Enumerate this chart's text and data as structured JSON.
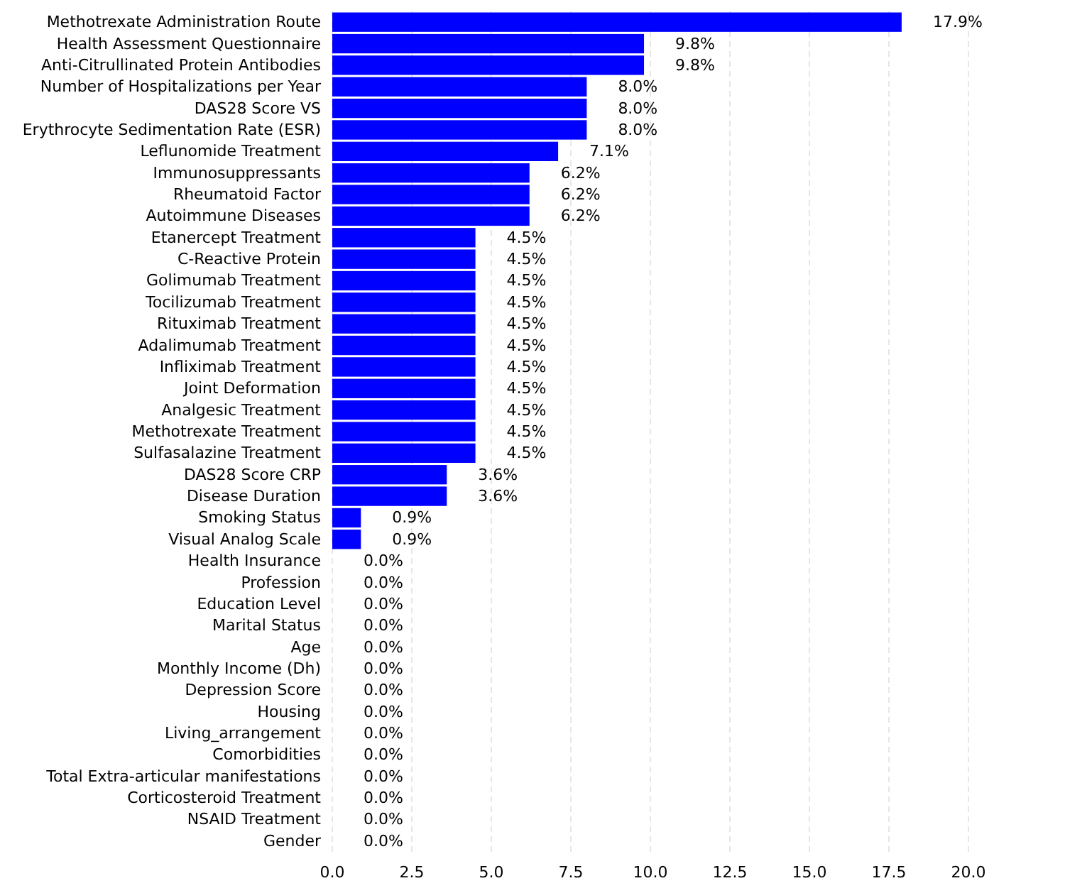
{
  "chart_data": {
    "type": "bar",
    "orientation": "horizontal",
    "color": "#0000ff",
    "grid": "x",
    "categories": [
      "Methotrexate Administration Route",
      "Health Assessment Questionnaire",
      "Anti-Citrullinated Protein Antibodies",
      "Number of Hospitalizations per Year",
      "DAS28 Score VS",
      "Erythrocyte Sedimentation Rate (ESR)",
      "Leflunomide Treatment",
      "Immunosuppressants",
      "Rheumatoid Factor",
      "Autoimmune Diseases",
      "Etanercept Treatment",
      "C-Reactive Protein",
      "Golimumab Treatment",
      "Tocilizumab Treatment",
      "Rituximab Treatment",
      "Adalimumab Treatment",
      "Infliximab Treatment",
      "Joint Deformation",
      "Analgesic Treatment",
      "Methotrexate Treatment",
      "Sulfasalazine Treatment",
      "DAS28 Score CRP",
      "Disease Duration",
      "Smoking Status",
      "Visual Analog Scale",
      "Health Insurance",
      "Profession",
      "Education Level",
      "Marital Status",
      "Age",
      "Monthly Income (Dh)",
      "Depression Score",
      "Housing",
      "Living_arrangement",
      "Comorbidities",
      "Total Extra-articular manifestations",
      "Corticosteroid Treatment",
      "NSAID Treatment",
      "Gender"
    ],
    "values": [
      17.9,
      9.8,
      9.8,
      8.0,
      8.0,
      8.0,
      7.1,
      6.2,
      6.2,
      6.2,
      4.5,
      4.5,
      4.5,
      4.5,
      4.5,
      4.5,
      4.5,
      4.5,
      4.5,
      4.5,
      4.5,
      3.6,
      3.6,
      0.9,
      0.9,
      0,
      0,
      0,
      0,
      0,
      0,
      0,
      0,
      0,
      0,
      0,
      0,
      0,
      0
    ],
    "value_labels": [
      "17.9%",
      "9.8%",
      "9.8%",
      "8.0%",
      "8.0%",
      "8.0%",
      "7.1%",
      "6.2%",
      "6.2%",
      "6.2%",
      "4.5%",
      "4.5%",
      "4.5%",
      "4.5%",
      "4.5%",
      "4.5%",
      "4.5%",
      "4.5%",
      "4.5%",
      "4.5%",
      "4.5%",
      "3.6%",
      "3.6%",
      "0.9%",
      "0.9%",
      "0.0%",
      "0.0%",
      "0.0%",
      "0.0%",
      "0.0%",
      "0.0%",
      "0.0%",
      "0.0%",
      "0.0%",
      "0.0%",
      "0.0%",
      "0.0%",
      "0.0%",
      "0.0%"
    ],
    "xlim": [
      0,
      20
    ],
    "xticks": [
      {
        "value": 0,
        "label": "0.0"
      },
      {
        "value": 2.5,
        "label": "2.5"
      },
      {
        "value": 5,
        "label": "5.0"
      },
      {
        "value": 7.5,
        "label": "7.5"
      },
      {
        "value": 10,
        "label": "10.0"
      },
      {
        "value": 12.5,
        "label": "12.5"
      },
      {
        "value": 15,
        "label": "15.0"
      },
      {
        "value": 17.5,
        "label": "17.5"
      },
      {
        "value": 20,
        "label": "20.0"
      }
    ]
  }
}
